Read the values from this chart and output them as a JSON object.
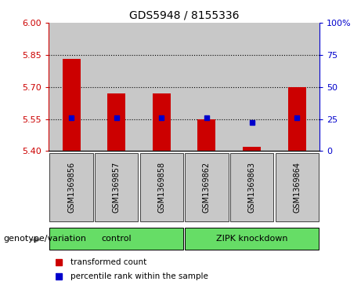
{
  "title": "GDS5948 / 8155336",
  "samples": [
    "GSM1369856",
    "GSM1369857",
    "GSM1369858",
    "GSM1369862",
    "GSM1369863",
    "GSM1369864"
  ],
  "bar_values": [
    5.83,
    5.67,
    5.67,
    5.55,
    5.42,
    5.7
  ],
  "percentile_values": [
    26,
    26,
    26,
    26,
    22,
    26
  ],
  "ylim_left": [
    5.4,
    6.0
  ],
  "ylim_right": [
    0,
    100
  ],
  "yticks_left": [
    5.4,
    5.55,
    5.7,
    5.85,
    6.0
  ],
  "yticks_right": [
    0,
    25,
    50,
    75,
    100
  ],
  "hlines": [
    5.55,
    5.7,
    5.85
  ],
  "bar_color": "#cc0000",
  "dot_color": "#0000cc",
  "bar_bottom": 5.4,
  "groups_info": [
    {
      "label": "control",
      "start": 0,
      "end": 3,
      "color": "#66dd66"
    },
    {
      "label": "ZIPK knockdown",
      "start": 3,
      "end": 6,
      "color": "#66dd66"
    }
  ],
  "group_label": "genotype/variation",
  "legend_items": [
    {
      "label": "transformed count",
      "color": "#cc0000"
    },
    {
      "label": "percentile rank within the sample",
      "color": "#0000cc"
    }
  ],
  "col_bg": "#c8c8c8",
  "plot_bg": "#ffffff",
  "tick_color_left": "#cc0000",
  "tick_color_right": "#0000cc",
  "bar_width": 0.4,
  "title_fontsize": 10
}
